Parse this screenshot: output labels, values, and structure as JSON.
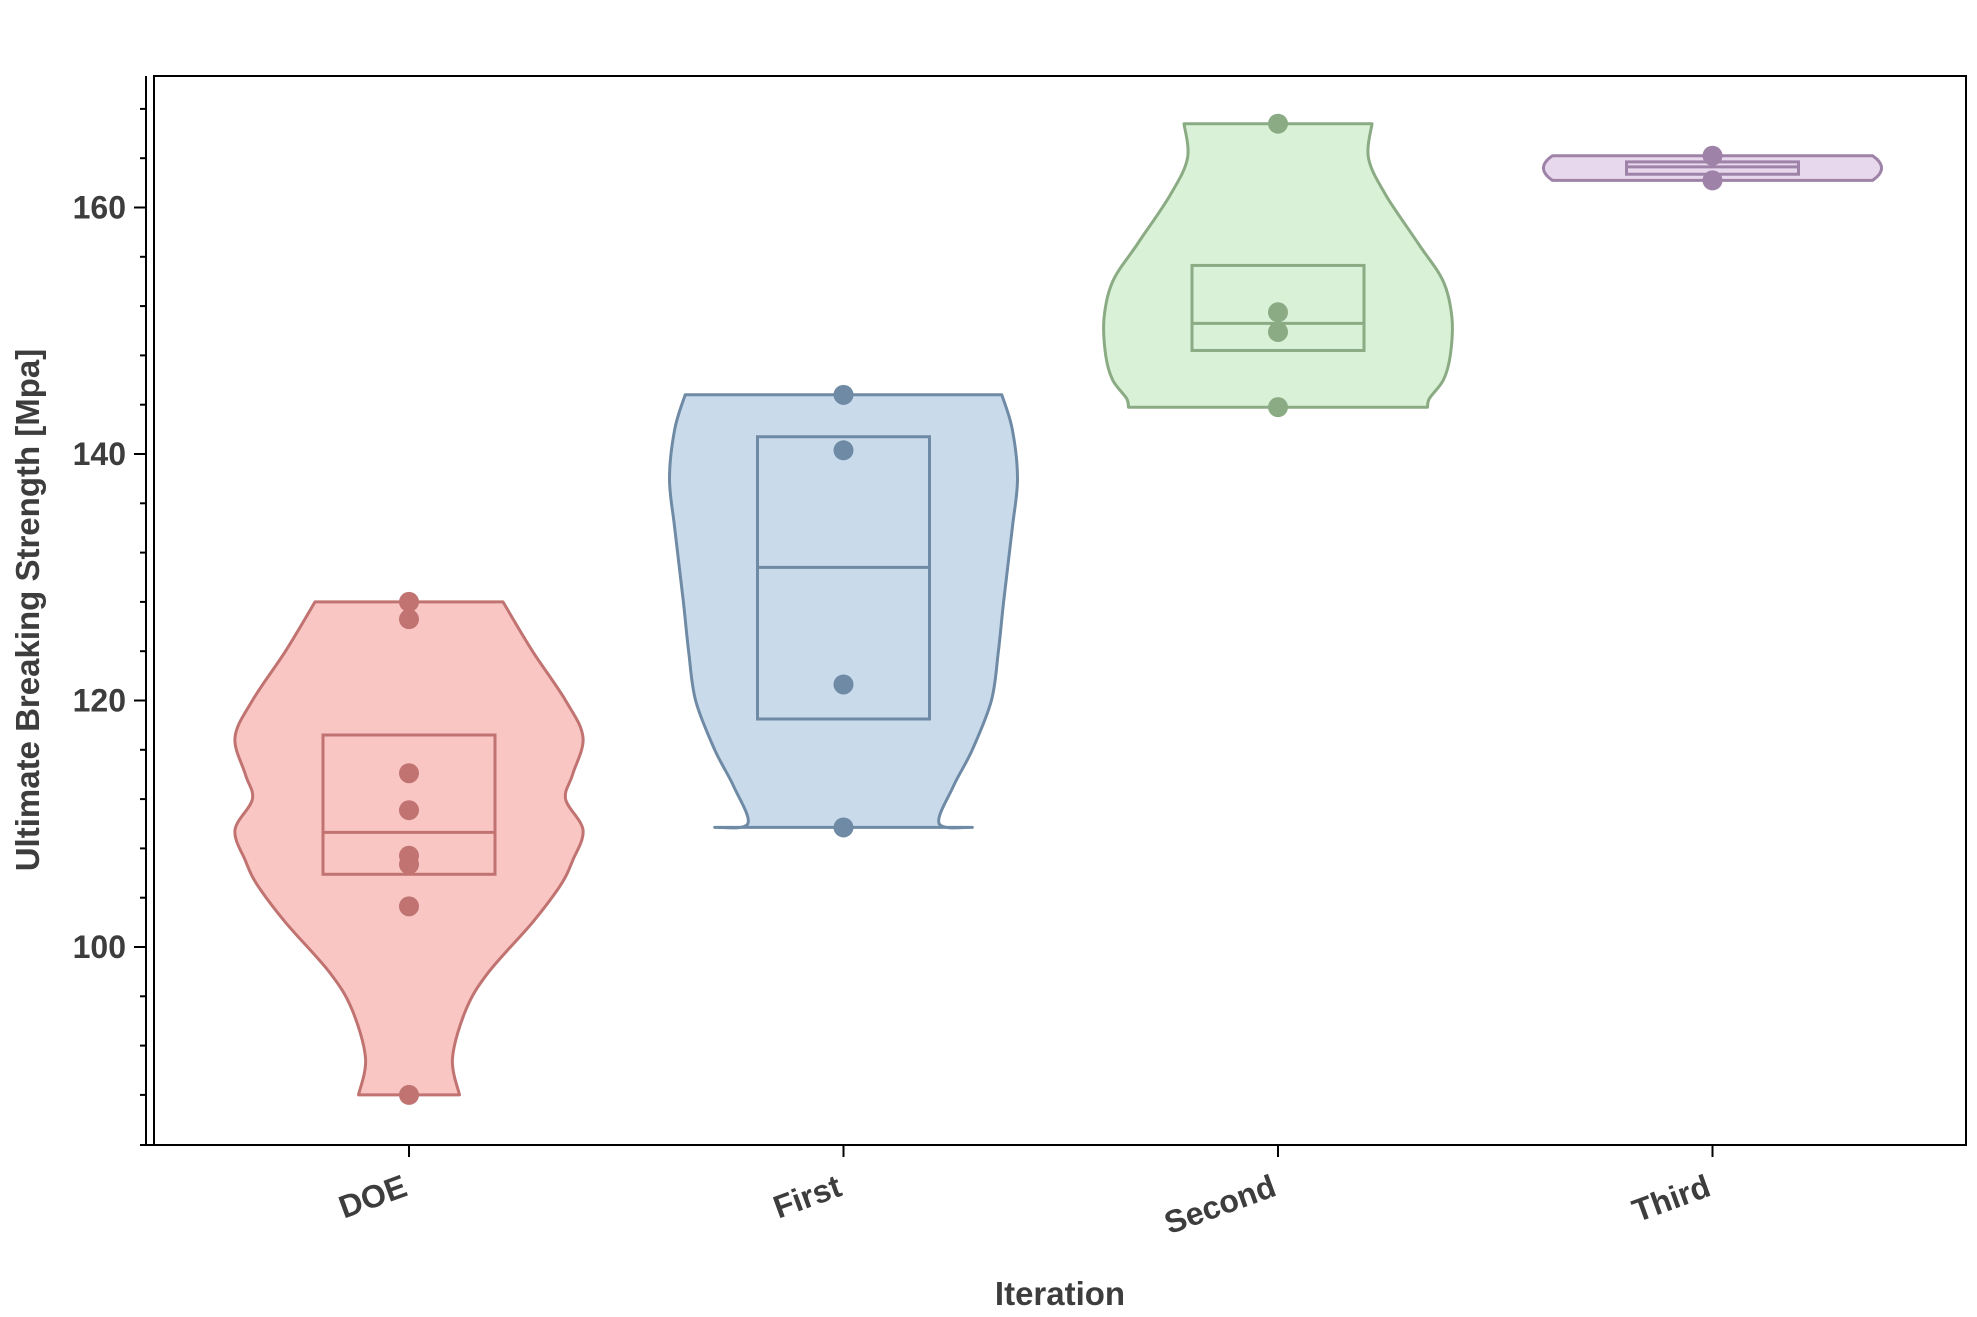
{
  "chart_data": {
    "type": "violin",
    "title": "",
    "xlabel": "Iteration",
    "ylabel": "Ultimate Breaking Strength [Mpa]",
    "categories": [
      "DOE",
      "First",
      "Second",
      "Third"
    ],
    "ylim": [
      84,
      171
    ],
    "yticks_major": [
      100,
      120,
      140,
      160
    ],
    "ytick_labels": [
      "100",
      "120",
      "140",
      "160"
    ],
    "yticks_minor": [
      88,
      92,
      96,
      104,
      108,
      112,
      116,
      124,
      128,
      132,
      136,
      144,
      148,
      152,
      156,
      164,
      168
    ],
    "grid": false,
    "legend": "none",
    "series": [
      {
        "category": "DOE",
        "fill_color": "#f9c6c4",
        "line_color": "#c07370",
        "points": [
          128.0,
          126.6,
          114.1,
          111.1,
          107.4,
          106.7,
          103.3,
          88.0
        ],
        "box": {
          "q1": 105.9,
          "median": 109.3,
          "q3": 117.2
        },
        "range": [
          88.0,
          128.0
        ],
        "violin_profile": [
          [
            128.0,
            0.54
          ],
          [
            124.0,
            0.71
          ],
          [
            120.0,
            0.9
          ],
          [
            117.0,
            1.0
          ],
          [
            114.0,
            0.94
          ],
          [
            112.0,
            0.9
          ],
          [
            109.5,
            1.0
          ],
          [
            107.0,
            0.94
          ],
          [
            105.0,
            0.87
          ],
          [
            102.0,
            0.71
          ],
          [
            98.0,
            0.46
          ],
          [
            95.0,
            0.33
          ],
          [
            91.0,
            0.25
          ],
          [
            88.0,
            0.29
          ]
        ]
      },
      {
        "category": "First",
        "fill_color": "#c9dbeb",
        "line_color": "#6f8aa5",
        "points": [
          144.8,
          140.3,
          121.3,
          109.7
        ],
        "box": {
          "q1": 118.5,
          "median": 130.8,
          "q3": 141.4
        },
        "range": [
          109.7,
          144.8
        ],
        "violin_profile": [
          [
            144.8,
            0.91
          ],
          [
            142.0,
            0.97
          ],
          [
            138.0,
            1.0
          ],
          [
            134.0,
            0.97
          ],
          [
            128.0,
            0.92
          ],
          [
            124.0,
            0.89
          ],
          [
            120.0,
            0.85
          ],
          [
            116.0,
            0.74
          ],
          [
            113.0,
            0.63
          ],
          [
            110.0,
            0.55
          ],
          [
            109.7,
            0.74
          ]
        ]
      },
      {
        "category": "Second",
        "fill_color": "#d9f1d6",
        "line_color": "#8aab83",
        "points": [
          166.8,
          151.5,
          149.9,
          143.8
        ],
        "box": {
          "q1": 148.4,
          "median": 150.6,
          "q3": 155.3
        },
        "range": [
          143.8,
          166.8
        ],
        "violin_profile": [
          [
            166.8,
            0.54
          ],
          [
            164.0,
            0.52
          ],
          [
            161.0,
            0.62
          ],
          [
            157.0,
            0.81
          ],
          [
            154.0,
            0.95
          ],
          [
            151.0,
            1.0
          ],
          [
            148.0,
            0.99
          ],
          [
            146.0,
            0.95
          ],
          [
            144.5,
            0.87
          ],
          [
            143.8,
            0.86
          ]
        ]
      },
      {
        "category": "Third",
        "fill_color": "#e8d8ed",
        "line_color": "#9e82a8",
        "points": [
          164.2,
          162.2
        ],
        "box": {
          "q1": 162.7,
          "median": 163.3,
          "q3": 163.7
        },
        "range": [
          162.2,
          164.2
        ],
        "violin_profile": [
          [
            164.2,
            0.92
          ],
          [
            163.6,
            0.98
          ],
          [
            163.2,
            1.0
          ],
          [
            162.8,
            0.98
          ],
          [
            162.2,
            0.92
          ]
        ]
      }
    ]
  }
}
